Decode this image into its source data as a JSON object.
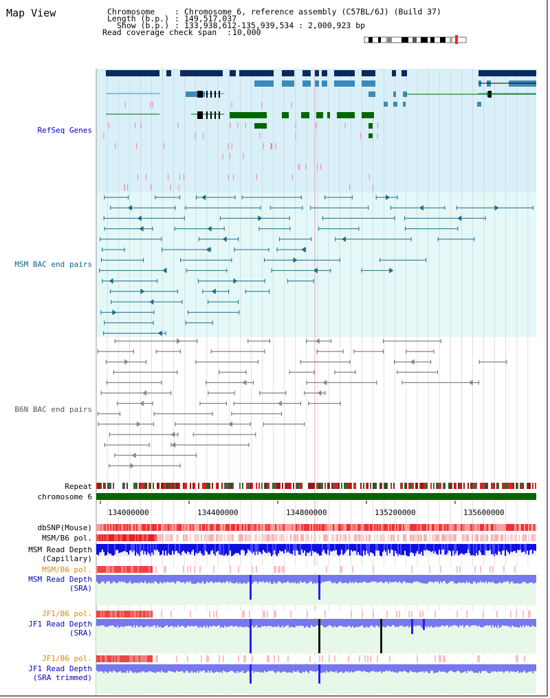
{
  "header": {
    "title": "Map View",
    "chromosome_key": "Chromosome",
    "chromosome_value": "Chromosome 6, reference assembly (C57BL/6J) (Build 37)",
    "length_key": "Length (b.p.)",
    "length_value": "149,517,037",
    "show_key": "Show (b.p.)",
    "show_value": "133,938,612-135,939,534 : 2,000,923 bp",
    "coverage_key": "Read coverage check span",
    "coverage_value": "10,000"
  },
  "tracks": {
    "refseq": "RefSeq Genes",
    "msm_bac": "MSM BAC end pairs",
    "b6n_bac": "B6N BAC end pairs",
    "repeat": "Repeat",
    "chromosome": "chromosome 6",
    "dbsnp": "dbSNP(Mouse)",
    "msm_b6_pol": "MSM/B6 pol.",
    "msm_depth_cap_1": "MSM Read Depth",
    "msm_depth_cap_2": "(Capillary)",
    "msm_b6_pol_sra": "MSM/B6 pol.",
    "msm_depth_sra_1": "MSM Read Depth",
    "msm_depth_sra_2": "(SRA)",
    "jf1_b6_pol": "JF1/B6 pol.",
    "jf1_depth_sra_1": "JF1 Read Depth",
    "jf1_depth_sra_2": "(SRA)",
    "jf1_b6_pol_trim": "JF1/B6 pol.",
    "jf1_depth_trim_1": "JF1 Read Depth",
    "jf1_depth_trim_2": "(SRA trimmed)"
  },
  "axis": {
    "ticks": [
      "134000000",
      "134400000",
      "134800000",
      "135200000",
      "135600000"
    ]
  },
  "colors": {
    "refseq_bg": "#d9f0f8",
    "bac_bg": "#e4f8f8",
    "gene_navy": "#0a2a5e",
    "gene_steel": "#3a8ab8",
    "gene_green": "#006600",
    "bac_teal": "#1a6a88",
    "bac_gray": "#666666",
    "depth_blue": "#2222ee",
    "depth_light": "#7777ee",
    "chromosome_green": "#006600"
  }
}
